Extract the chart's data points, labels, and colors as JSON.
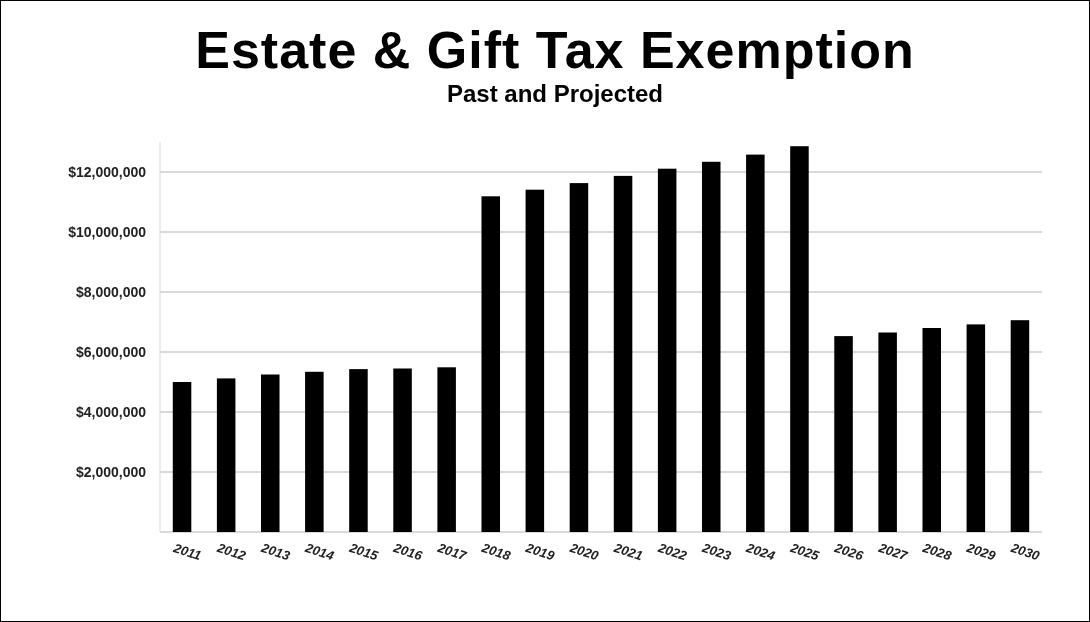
{
  "chart_data": {
    "type": "bar",
    "title": "Estate & Gift Tax Exemption",
    "subtitle": "Past and Projected",
    "categories": [
      "2011",
      "2012",
      "2013",
      "2014",
      "2015",
      "2016",
      "2017",
      "2018",
      "2019",
      "2020",
      "2021",
      "2022",
      "2023",
      "2024",
      "2025",
      "2026",
      "2027",
      "2028",
      "2029",
      "2030"
    ],
    "values": [
      5000000,
      5120000,
      5250000,
      5340000,
      5430000,
      5450000,
      5490000,
      11190000,
      11410000,
      11630000,
      11870000,
      12110000,
      12340000,
      12580000,
      12860000,
      6530000,
      6650000,
      6800000,
      6920000,
      7060000
    ],
    "color": "#000000",
    "ylim": [
      0,
      13000000
    ],
    "yticks": [
      {
        "value": 0,
        "label": null
      },
      {
        "value": 2000000,
        "label": "$2,000,000"
      },
      {
        "value": 4000000,
        "label": "$4,000,000"
      },
      {
        "value": 6000000,
        "label": "$6,000,000"
      },
      {
        "value": 8000000,
        "label": "$8,000,000"
      },
      {
        "value": 10000000,
        "label": "$10,000,000"
      },
      {
        "value": 12000000,
        "label": "$12,000,000"
      }
    ],
    "grid": "y"
  }
}
